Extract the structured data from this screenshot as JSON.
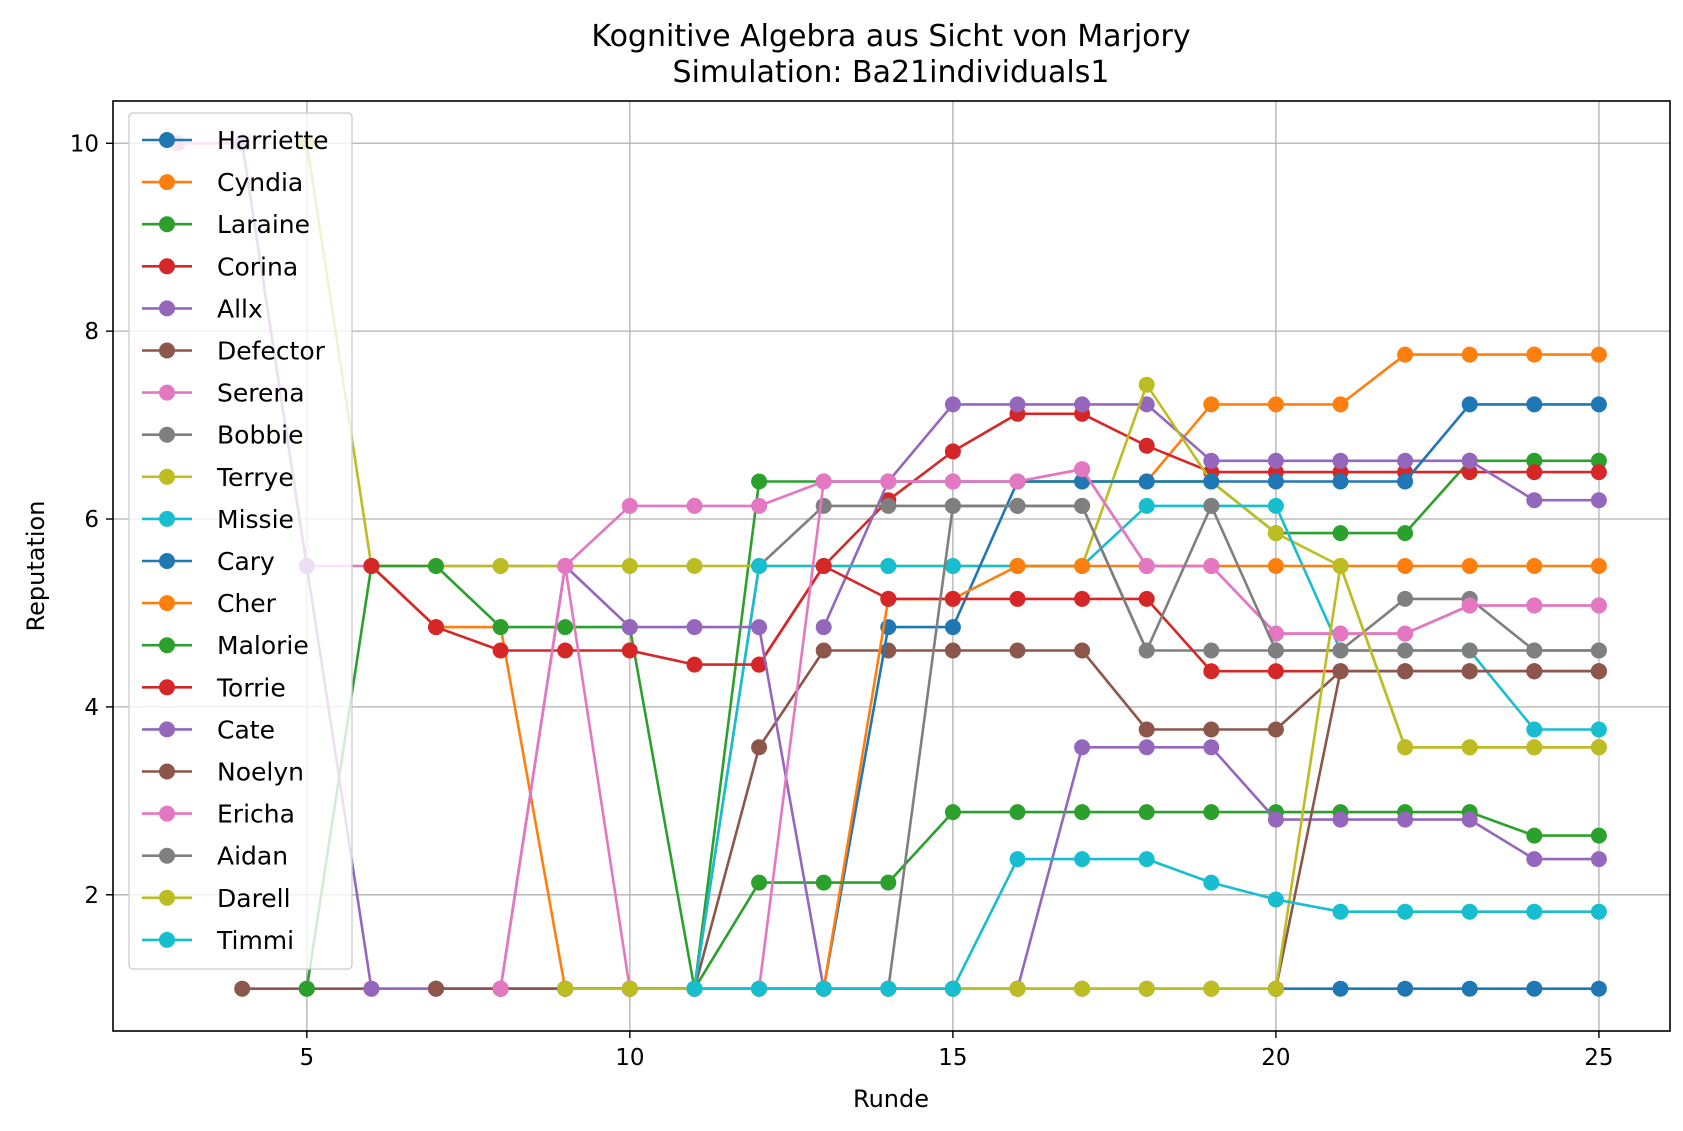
{
  "chart_data": {
    "type": "line",
    "title": "Kognitive Algebra aus Sicht von Marjory",
    "subtitle": "Simulation: Ba21individuals1",
    "xlabel": "Runde",
    "ylabel": "Reputation",
    "xlim": [
      2,
      26.1
    ],
    "ylim": [
      0.55,
      10.45
    ],
    "xticks": [
      5,
      10,
      15,
      20,
      25
    ],
    "yticks": [
      2,
      4,
      6,
      8,
      10
    ],
    "grid": true,
    "legend_position": "upper-left",
    "series": [
      {
        "name": "Harriette",
        "color": "#1f77b4",
        "x": [
          20,
          21,
          22,
          23,
          24,
          25
        ],
        "y": [
          1,
          1,
          1,
          1,
          1,
          1
        ]
      },
      {
        "name": "Cyndia",
        "color": "#ff7f0e",
        "x": [
          18,
          19,
          20,
          21,
          22,
          23,
          24,
          25
        ],
        "y": [
          6.4,
          7.22,
          7.22,
          7.22,
          7.75,
          7.75,
          7.75,
          7.75
        ]
      },
      {
        "name": "Laraine",
        "color": "#2ca02c",
        "x": [
          11,
          12,
          13,
          14,
          15,
          16,
          17,
          18,
          19,
          20,
          21,
          22,
          23,
          24,
          25
        ],
        "y": [
          1,
          6.4,
          6.4,
          6.4,
          6.4,
          6.4,
          6.4,
          6.4,
          6.4,
          5.85,
          5.85,
          5.85,
          6.62,
          6.62,
          6.62
        ]
      },
      {
        "name": "Corina",
        "color": "#d62728",
        "x": [
          12,
          13,
          14,
          15,
          16,
          17,
          18,
          19,
          20,
          21,
          22,
          23,
          24,
          25
        ],
        "y": [
          4.45,
          5.5,
          6.2,
          6.72,
          7.12,
          7.12,
          6.78,
          6.5,
          6.5,
          6.5,
          6.5,
          6.5,
          6.5,
          6.5
        ]
      },
      {
        "name": "Allx",
        "color": "#9467bd",
        "x": [
          13,
          14,
          15,
          16,
          17,
          18,
          19,
          20,
          21,
          22,
          23,
          24,
          25
        ],
        "y": [
          4.85,
          6.4,
          7.22,
          7.22,
          7.22,
          7.22,
          6.62,
          6.62,
          6.62,
          6.62,
          6.62,
          6.2,
          6.2
        ]
      },
      {
        "name": "Defector",
        "color": "#8c564b",
        "x": [
          4,
          5,
          6,
          7,
          8,
          9,
          10,
          11,
          12,
          13,
          14,
          15,
          16,
          17,
          18,
          19,
          20,
          21,
          22,
          23,
          24,
          25
        ],
        "y": [
          1,
          1,
          1,
          1,
          1,
          1,
          1,
          1,
          3.57,
          4.6,
          4.6,
          4.6,
          4.6,
          4.6,
          3.76,
          3.76,
          3.76,
          4.38,
          4.38,
          4.38,
          4.38,
          4.38
        ]
      },
      {
        "name": "Serena",
        "color": "#e377c2",
        "x": [
          3,
          4,
          5,
          6,
          7,
          8,
          9,
          10,
          11,
          12,
          13,
          14,
          15,
          16,
          17,
          18,
          19,
          20,
          21,
          22,
          23,
          24,
          25
        ],
        "y": [
          10,
          10,
          5.5,
          5.5,
          5.5,
          5.5,
          5.5,
          6.14,
          6.14,
          6.14,
          6.4,
          6.4,
          6.4,
          6.4,
          6.53,
          5.5,
          5.5,
          4.78,
          4.78,
          4.78,
          5.08,
          5.08,
          5.08
        ]
      },
      {
        "name": "Bobbie",
        "color": "#7f7f7f",
        "x": [
          8,
          9,
          10,
          11,
          12,
          13,
          14,
          15,
          16,
          17,
          18,
          19,
          20,
          21,
          22,
          23,
          24,
          25
        ],
        "y": [
          1,
          1,
          1,
          1,
          5.5,
          6.14,
          6.14,
          6.14,
          6.14,
          6.14,
          4.6,
          4.6,
          4.6,
          4.6,
          5.15,
          5.15,
          4.6,
          4.6
        ]
      },
      {
        "name": "Terrye",
        "color": "#bcbd22",
        "x": [
          5,
          6,
          7,
          8,
          9,
          10,
          11,
          12,
          13,
          14,
          15,
          16,
          17,
          18,
          19,
          20,
          21,
          22,
          23,
          24,
          25
        ],
        "y": [
          10,
          5.5,
          5.5,
          5.5,
          5.5,
          5.5,
          5.5,
          5.5,
          5.5,
          5.5,
          5.5,
          5.5,
          5.5,
          7.43,
          6.4,
          5.85,
          5.5,
          3.57,
          3.57,
          3.57,
          3.57
        ]
      },
      {
        "name": "Missie",
        "color": "#17becf",
        "x": [
          11,
          12,
          13,
          14,
          15,
          16,
          17,
          18,
          19,
          20,
          21,
          22,
          23,
          24,
          25
        ],
        "y": [
          1,
          5.5,
          5.5,
          5.5,
          5.5,
          5.5,
          5.5,
          6.14,
          6.14,
          6.14,
          4.6,
          4.6,
          4.6,
          3.76,
          3.76
        ]
      },
      {
        "name": "Cary",
        "color": "#1f77b4",
        "x": [
          9,
          10,
          11,
          12,
          13,
          14,
          15,
          16,
          17,
          18,
          19,
          20,
          21,
          22,
          23,
          24,
          25
        ],
        "y": [
          1,
          1,
          1,
          1,
          1,
          4.85,
          4.85,
          6.4,
          6.4,
          6.4,
          6.4,
          6.4,
          6.4,
          6.4,
          7.22,
          7.22,
          7.22
        ]
      },
      {
        "name": "Cher",
        "color": "#ff7f0e",
        "x": [
          6,
          7,
          8,
          9,
          10,
          11,
          12,
          13,
          14,
          15,
          16,
          17,
          18,
          19,
          20,
          21,
          22,
          23,
          24,
          25
        ],
        "y": [
          5.5,
          4.85,
          4.85,
          1,
          1,
          1,
          1,
          1,
          5.15,
          5.15,
          5.5,
          5.5,
          5.5,
          5.5,
          5.5,
          5.5,
          5.5,
          5.5,
          5.5,
          5.5
        ]
      },
      {
        "name": "Malorie",
        "color": "#2ca02c",
        "x": [
          5,
          6,
          7,
          8,
          9,
          10,
          11,
          12,
          13,
          14,
          15,
          16,
          17,
          18,
          19,
          20,
          21,
          22,
          23,
          24,
          25
        ],
        "y": [
          1,
          5.5,
          5.5,
          4.85,
          4.85,
          4.85,
          1,
          2.13,
          2.13,
          2.13,
          2.88,
          2.88,
          2.88,
          2.88,
          2.88,
          2.88,
          2.88,
          2.88,
          2.88,
          2.63,
          2.63
        ]
      },
      {
        "name": "Torrie",
        "color": "#d62728",
        "x": [
          6,
          7,
          8,
          9,
          10,
          11,
          12,
          13,
          14,
          15,
          16,
          17,
          18,
          19,
          20,
          21,
          22,
          23,
          24,
          25
        ],
        "y": [
          5.5,
          4.85,
          4.6,
          4.6,
          4.6,
          4.45,
          4.45,
          5.5,
          5.15,
          5.15,
          5.15,
          5.15,
          5.15,
          4.38,
          4.38,
          4.38,
          4.38,
          4.38,
          4.38,
          4.38
        ]
      },
      {
        "name": "Cate",
        "color": "#9467bd",
        "x": [
          4,
          5,
          6,
          7,
          8,
          9,
          10,
          11,
          12,
          13,
          14,
          15,
          16,
          17,
          18,
          19,
          20,
          21,
          22,
          23,
          24,
          25
        ],
        "y": [
          10,
          5.5,
          1,
          1,
          1,
          5.5,
          4.85,
          4.85,
          4.85,
          1,
          1,
          1,
          1,
          3.57,
          3.57,
          3.57,
          2.8,
          2.8,
          2.8,
          2.8,
          2.38,
          2.38
        ]
      },
      {
        "name": "Noelyn",
        "color": "#8c564b",
        "x": [
          7,
          8,
          9,
          10,
          11,
          12,
          13,
          14,
          15,
          16,
          17,
          18,
          19,
          20,
          21,
          22,
          23,
          24,
          25
        ],
        "y": [
          1,
          1,
          1,
          1,
          1,
          1,
          1,
          1,
          1,
          1,
          1,
          1,
          1,
          1,
          4.38,
          4.38,
          4.38,
          4.38,
          4.38
        ]
      },
      {
        "name": "Ericha",
        "color": "#e377c2",
        "x": [
          8,
          9,
          10,
          11,
          12,
          13,
          14,
          15,
          16,
          17,
          18,
          19,
          20,
          21,
          22,
          23,
          24,
          25
        ],
        "y": [
          1,
          5.5,
          1,
          1,
          1,
          6.4,
          6.4,
          6.4,
          6.4,
          6.53,
          5.5,
          5.5,
          4.78,
          4.78,
          4.78,
          5.08,
          5.08,
          5.08
        ]
      },
      {
        "name": "Aidan",
        "color": "#7f7f7f",
        "x": [
          12,
          13,
          14,
          15,
          16,
          17,
          18,
          19,
          20,
          21,
          22,
          23,
          24,
          25
        ],
        "y": [
          1,
          1,
          1,
          6.14,
          6.14,
          6.14,
          4.6,
          6.14,
          4.6,
          4.6,
          4.6,
          4.6,
          4.6,
          4.6
        ]
      },
      {
        "name": "Darell",
        "color": "#bcbd22",
        "x": [
          9,
          10,
          11,
          12,
          13,
          14,
          15,
          16,
          17,
          18,
          19,
          20,
          21,
          22,
          23,
          24,
          25
        ],
        "y": [
          1,
          1,
          1,
          1,
          1,
          1,
          1,
          1,
          1,
          1,
          1,
          1,
          5.5,
          3.57,
          3.57,
          3.57,
          3.57
        ]
      },
      {
        "name": "Timmi",
        "color": "#17becf",
        "x": [
          11,
          12,
          13,
          14,
          15,
          16,
          17,
          18,
          19,
          20,
          21,
          22,
          23,
          24,
          25
        ],
        "y": [
          1,
          1,
          1,
          1,
          1,
          2.38,
          2.38,
          2.38,
          2.13,
          1.95,
          1.82,
          1.82,
          1.82,
          1.82,
          1.82
        ]
      }
    ]
  }
}
